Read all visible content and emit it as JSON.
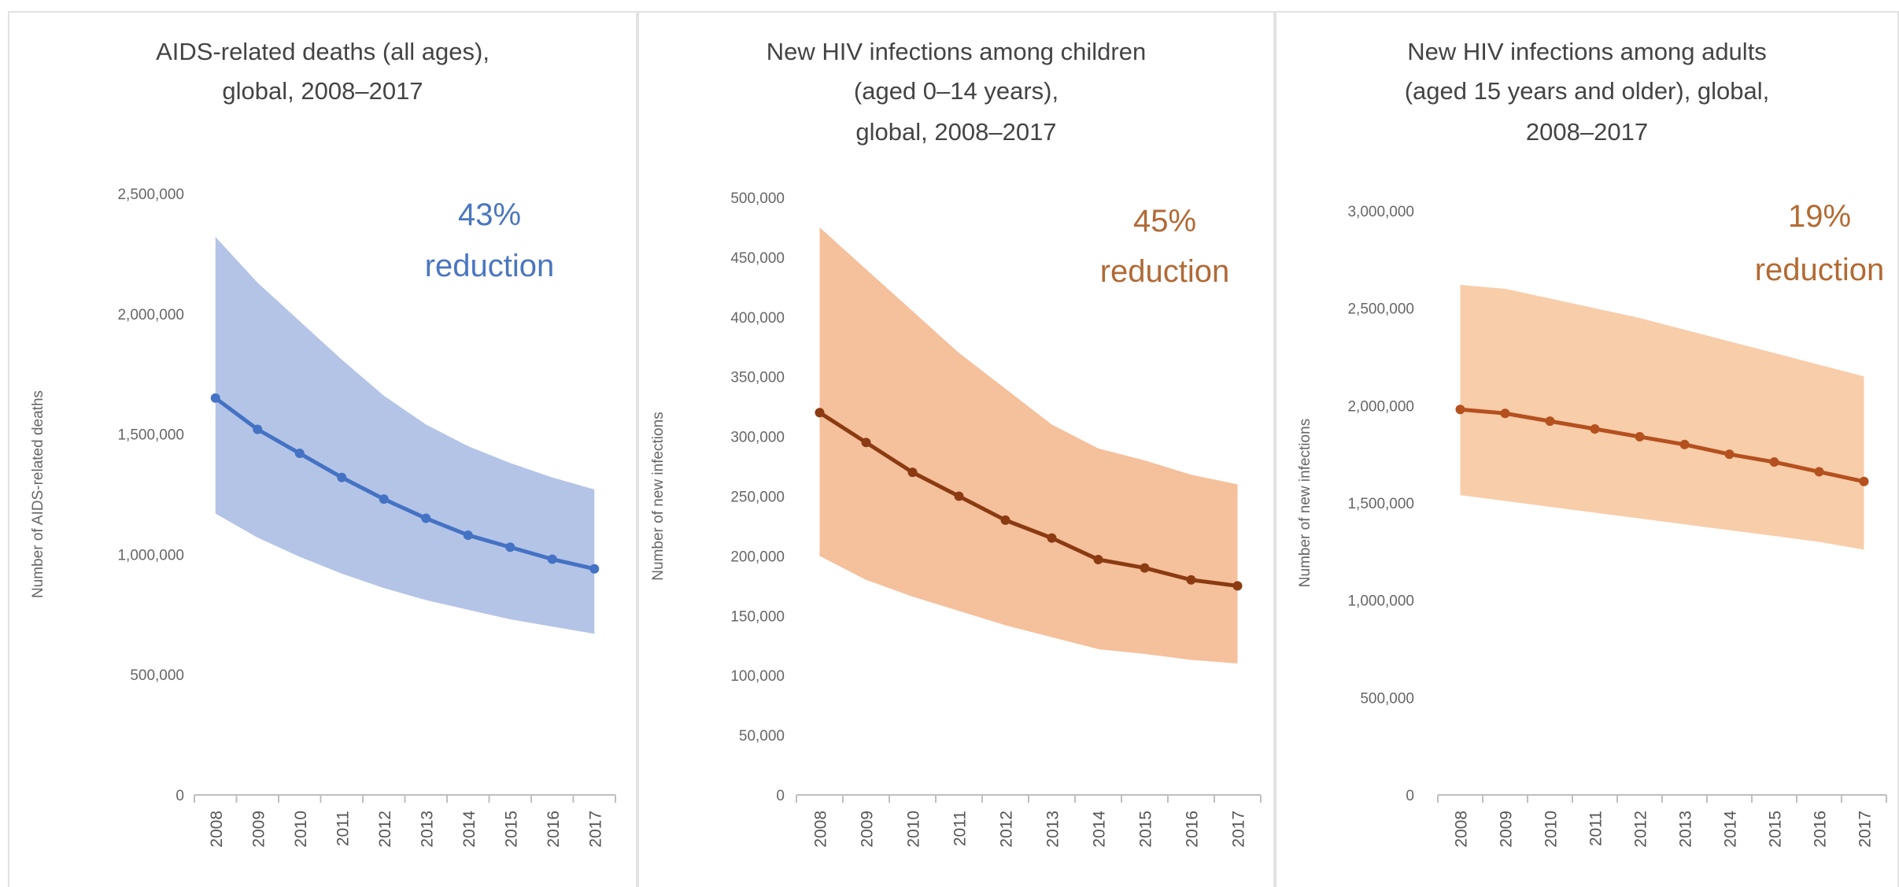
{
  "chart_data": [
    {
      "type": "area",
      "title": [
        "AIDS-related deaths (all ages),",
        "global, 2008–2017"
      ],
      "ylabel": "Number of AIDS-related deaths",
      "xlabel": "",
      "ylim": [
        0,
        2500000
      ],
      "yticks": [
        0,
        500000,
        1000000,
        1500000,
        2000000,
        2500000
      ],
      "ytick_labels": [
        "0",
        "500,000",
        "1,000,000",
        "1,500,000",
        "2,000,000",
        "2,500,000"
      ],
      "categories": [
        "2008",
        "2009",
        "2010",
        "2011",
        "2012",
        "2013",
        "2014",
        "2015",
        "2016",
        "2017"
      ],
      "series": [
        {
          "values": [
            1650000,
            1520000,
            1420000,
            1320000,
            1230000,
            1150000,
            1080000,
            1030000,
            980000,
            940000
          ]
        }
      ],
      "band_upper": [
        2320000,
        2130000,
        1970000,
        1810000,
        1660000,
        1540000,
        1450000,
        1380000,
        1320000,
        1270000
      ],
      "band_lower": [
        1170000,
        1070000,
        990000,
        920000,
        860000,
        810000,
        770000,
        730000,
        700000,
        670000
      ],
      "annotation": {
        "pct": "43%",
        "word": "reduction"
      },
      "colors": {
        "line": "#4472c4",
        "band": "#b4c4e6",
        "annotation": "#4a76c0"
      },
      "grid": false
    },
    {
      "type": "area",
      "title": [
        "New HIV infections among children",
        "(aged 0–14 years),",
        "global, 2008–2017"
      ],
      "ylabel": "Number of new infections",
      "xlabel": "",
      "ylim": [
        0,
        500000
      ],
      "yticks": [
        0,
        50000,
        100000,
        150000,
        200000,
        250000,
        300000,
        350000,
        400000,
        450000,
        500000
      ],
      "ytick_labels": [
        "0",
        "50,000",
        "100,000",
        "150,000",
        "200,000",
        "250,000",
        "300,000",
        "350,000",
        "400,000",
        "450,000",
        "500,000"
      ],
      "categories": [
        "2008",
        "2009",
        "2010",
        "2011",
        "2012",
        "2013",
        "2014",
        "2015",
        "2016",
        "2017"
      ],
      "series": [
        {
          "values": [
            320000,
            295000,
            270000,
            250000,
            230000,
            215000,
            197000,
            190000,
            180000,
            175000
          ]
        }
      ],
      "band_upper": [
        475000,
        440000,
        405000,
        370000,
        340000,
        310000,
        290000,
        280000,
        268000,
        260000
      ],
      "band_lower": [
        200000,
        180000,
        166000,
        154000,
        142000,
        132000,
        122000,
        118000,
        113000,
        110000
      ],
      "annotation": {
        "pct": "45%",
        "word": "reduction"
      },
      "colors": {
        "line": "#8b3a12",
        "band": "#f5c09c",
        "annotation": "#b06a36"
      },
      "grid": false
    },
    {
      "type": "area",
      "title": [
        "New HIV infections among adults",
        "(aged 15 years and older), global,",
        "2008–2017"
      ],
      "ylabel": "Number of new infections",
      "xlabel": "",
      "ylim": [
        0,
        3000000
      ],
      "yticks": [
        0,
        500000,
        1000000,
        1500000,
        2000000,
        2500000,
        3000000
      ],
      "ytick_labels": [
        "0",
        "500,000",
        "1,000,000",
        "1,500,000",
        "2,000,000",
        "2,500,000",
        "3,000,000"
      ],
      "categories": [
        "2008",
        "2009",
        "2010",
        "2011",
        "2012",
        "2013",
        "2014",
        "2015",
        "2016",
        "2017"
      ],
      "series": [
        {
          "values": [
            1980000,
            1960000,
            1920000,
            1880000,
            1840000,
            1800000,
            1750000,
            1710000,
            1660000,
            1610000
          ]
        }
      ],
      "band_upper": [
        2620000,
        2600000,
        2550000,
        2500000,
        2450000,
        2390000,
        2330000,
        2270000,
        2210000,
        2150000
      ],
      "band_lower": [
        1540000,
        1510000,
        1480000,
        1450000,
        1420000,
        1390000,
        1360000,
        1330000,
        1300000,
        1260000
      ],
      "annotation": {
        "pct": "19%",
        "word": "reduction"
      },
      "colors": {
        "line": "#b5501f",
        "band": "#f8cda9",
        "annotation": "#b36a32"
      },
      "grid": false
    }
  ]
}
